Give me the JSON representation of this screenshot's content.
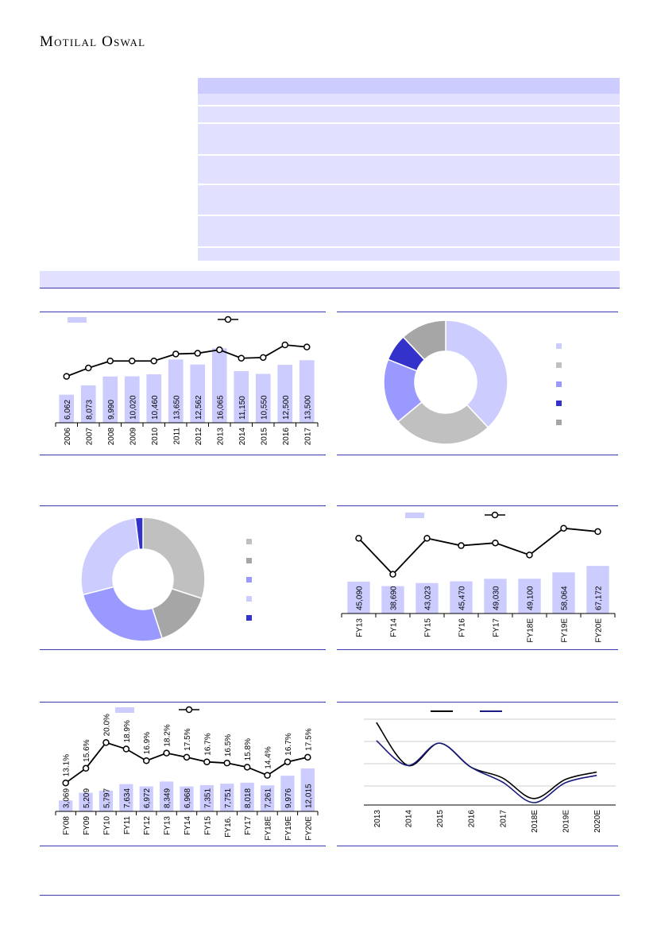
{
  "header": {
    "logo_text": "Motilal Oswal"
  },
  "table": {
    "row_count": 7
  },
  "chart_data": [
    {
      "type": "bar",
      "categories": [
        "2006",
        "2007",
        "2008",
        "2009",
        "2010",
        "2011",
        "2012",
        "2013",
        "2014",
        "2015",
        "2016",
        "2017"
      ],
      "values": [
        6062,
        8073,
        9990,
        10020,
        10460,
        13650,
        12562,
        16065,
        11150,
        10550,
        12500,
        13500
      ],
      "value_labels": [
        "6,062",
        "8,073",
        "9,990",
        "10,020",
        "10,460",
        "13,650",
        "12,562",
        "16,065",
        "11,150",
        "10,550",
        "12,500",
        "13,500"
      ],
      "line_values": [
        0.3,
        0.42,
        0.52,
        0.52,
        0.52,
        0.62,
        0.63,
        0.68,
        0.56,
        0.57,
        0.75,
        0.72
      ],
      "ylim": [
        0,
        18000
      ],
      "legend": "top",
      "colors": {
        "bar": "#ccccff",
        "line": "#000000"
      }
    },
    {
      "type": "pie",
      "values": [
        38,
        26,
        17,
        7,
        12
      ],
      "legend": "right",
      "colors": [
        "#ccccff",
        "#c0c0c0",
        "#9999ff",
        "#3333cc",
        "#a6a6a6"
      ]
    },
    {
      "type": "pie",
      "values": [
        30,
        15,
        26,
        27,
        2
      ],
      "legend": "right",
      "colors": [
        "#c0c0c0",
        "#a6a6a6",
        "#9999ff",
        "#ccccff",
        "#3333cc"
      ]
    },
    {
      "type": "bar",
      "categories": [
        "FY13",
        "FY14",
        "FY15",
        "FY16",
        "FY17",
        "FY18E",
        "FY19E",
        "FY20E"
      ],
      "values": [
        45090,
        38690,
        43023,
        45470,
        49030,
        49100,
        58064,
        67172
      ],
      "value_labels": [
        "45,090",
        "38,690",
        "43,023",
        "45,470",
        "49,030",
        "49,100",
        "58,064",
        "67,172"
      ],
      "line_values": [
        0.77,
        0.23,
        0.77,
        0.66,
        0.7,
        0.52,
        0.92,
        0.87
      ],
      "ylim": [
        0,
        110000
      ],
      "legend": "top",
      "colors": {
        "bar": "#ccccff",
        "line": "#000000"
      }
    },
    {
      "type": "bar",
      "categories": [
        "FY08",
        "FY09",
        "FY10",
        "FY11",
        "FY12",
        "FY13",
        "FY14",
        "FY15",
        "FY16.",
        "FY17",
        "FY18E",
        "FY19E",
        "FY20E"
      ],
      "values": [
        3069,
        5209,
        5797,
        7634,
        6972,
        8349,
        6968,
        7351,
        7751,
        8018,
        7261,
        9976,
        12015
      ],
      "value_labels": [
        "3,069",
        "5,209",
        "5,797",
        "7,634",
        "6,972",
        "8,349",
        "6,968",
        "7,351",
        "7,751",
        "8,018",
        "7,261",
        "9,976",
        "12,015"
      ],
      "line_values": [
        13.1,
        15.6,
        20.0,
        18.9,
        16.9,
        18.2,
        17.5,
        16.7,
        16.5,
        15.8,
        14.4,
        16.7,
        17.5
      ],
      "line_labels": [
        "13.1%",
        "15.6%",
        "20.0%",
        "18.9%",
        "16.9%",
        "18.2%",
        "17.5%",
        "16.7%",
        "16.5%",
        "15.8%",
        "14.4%",
        "16.7%",
        "17.5%"
      ],
      "ylim": [
        0,
        20000
      ],
      "legend": "top",
      "colors": {
        "bar": "#ccccff",
        "line": "#000000"
      }
    },
    {
      "type": "line",
      "x": [
        "2013",
        "2014",
        "2015",
        "2016",
        "2017",
        "2018E",
        "2019E",
        "2020E"
      ],
      "series": [
        {
          "values": [
            0.97,
            0.45,
            0.72,
            0.43,
            0.3,
            0.05,
            0.28,
            0.37
          ]
        },
        {
          "values": [
            0.75,
            0.45,
            0.72,
            0.43,
            0.25,
            0.0,
            0.24,
            0.33
          ]
        }
      ],
      "ylim": [
        0,
        1
      ],
      "grid": true,
      "legend": "top",
      "colors": [
        "#000000",
        "#1a1a80"
      ]
    }
  ]
}
